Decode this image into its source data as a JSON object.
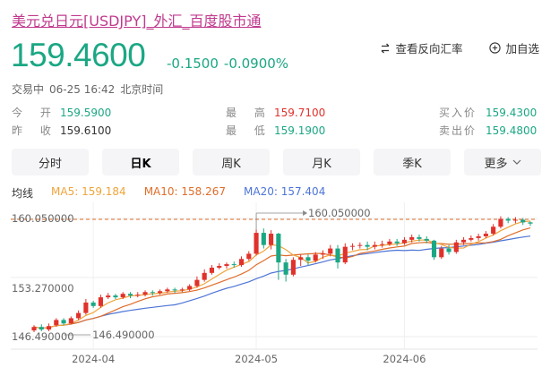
{
  "header": {
    "title": "美元兑日元[USDJPY]_外汇_百度股市通",
    "price": "159.4600",
    "change": "-0.1500",
    "change_pct": "-0.0900%",
    "status": "交易中",
    "datetime": "06-25 16:42",
    "timezone": "北京时间"
  },
  "actions": {
    "compare_label": "查看反向汇率",
    "watchlist_label": "加自选"
  },
  "stats": {
    "open_label": "今 开",
    "open": "159.5900",
    "prev_label": "昨 收",
    "prev": "159.6100",
    "high_label": "最 高",
    "high": "159.7100",
    "low_label": "最 低",
    "low": "159.1900",
    "bid_label": "买入价",
    "bid": "159.4300",
    "ask_label": "卖出价",
    "ask": "159.4800"
  },
  "tabs": [
    {
      "label": "分时"
    },
    {
      "label": "日K"
    },
    {
      "label": "周K"
    },
    {
      "label": "月K"
    },
    {
      "label": "季K"
    },
    {
      "label": "更多"
    }
  ],
  "ma_legend": {
    "title": "均线",
    "ma5": "MA5: 159.184",
    "ma10": "MA10: 158.267",
    "ma20": "MA20: 157.404"
  },
  "colors": {
    "up": "#e0312b",
    "down": "#1ba784",
    "ma5": "#f0a43c",
    "ma10": "#e06d2a",
    "ma20": "#4d74d6",
    "ref_line": "#e06d2a"
  },
  "chart_data": {
    "type": "candlestick",
    "y_tick_labels": [
      "160.050000",
      "153.270000",
      "146.490000"
    ],
    "x_tick_labels": [
      "2024-04",
      "2024-05",
      "2024-06"
    ],
    "max_label": "160.050000",
    "min_label": "146.490000",
    "ylim": [
      146.49,
      160.05
    ],
    "candles": [
      [
        147.2,
        147.6,
        147.0,
        147.8
      ],
      [
        147.6,
        147.3,
        147.1,
        147.9
      ],
      [
        147.3,
        147.7,
        147.1,
        148.0
      ],
      [
        147.8,
        148.4,
        147.6,
        148.6
      ],
      [
        148.4,
        148.0,
        147.8,
        148.6
      ],
      [
        148.0,
        148.6,
        147.9,
        148.8
      ],
      [
        148.6,
        149.2,
        148.4,
        149.5
      ],
      [
        149.2,
        150.4,
        149.0,
        150.8
      ],
      [
        150.4,
        150.0,
        149.8,
        150.6
      ],
      [
        150.0,
        151.0,
        149.8,
        151.3
      ],
      [
        151.0,
        151.2,
        150.8,
        151.5
      ],
      [
        151.2,
        151.0,
        150.8,
        151.4
      ],
      [
        151.0,
        151.4,
        150.8,
        151.6
      ],
      [
        151.4,
        151.2,
        150.9,
        151.6
      ],
      [
        151.2,
        151.3,
        151.0,
        151.6
      ],
      [
        151.3,
        151.6,
        151.1,
        151.8
      ],
      [
        151.6,
        151.5,
        151.2,
        151.8
      ],
      [
        151.5,
        151.7,
        151.3,
        151.9
      ],
      [
        151.7,
        151.9,
        151.5,
        152.1
      ],
      [
        151.9,
        151.8,
        151.5,
        152.1
      ],
      [
        151.8,
        151.9,
        151.6,
        152.1
      ],
      [
        151.9,
        152.3,
        151.7,
        152.5
      ],
      [
        152.3,
        153.0,
        152.1,
        153.4
      ],
      [
        153.0,
        153.8,
        152.8,
        154.2
      ],
      [
        153.8,
        154.4,
        153.6,
        154.7
      ],
      [
        154.4,
        154.6,
        154.2,
        154.9
      ],
      [
        154.6,
        154.8,
        154.3,
        155.0
      ],
      [
        154.8,
        154.7,
        154.4,
        155.1
      ],
      [
        154.7,
        155.4,
        154.5,
        155.7
      ],
      [
        155.4,
        156.0,
        155.2,
        156.3
      ],
      [
        156.0,
        158.4,
        155.8,
        158.8
      ],
      [
        158.4,
        157.0,
        156.6,
        158.9
      ],
      [
        157.0,
        158.3,
        156.5,
        158.7
      ],
      [
        158.3,
        155.0,
        153.0,
        158.4
      ],
      [
        155.0,
        153.6,
        152.8,
        155.4
      ],
      [
        153.6,
        155.3,
        153.4,
        155.6
      ],
      [
        155.3,
        155.6,
        154.6,
        155.9
      ],
      [
        155.6,
        155.2,
        154.7,
        155.9
      ],
      [
        155.2,
        155.9,
        155.0,
        156.2
      ],
      [
        155.9,
        156.0,
        155.4,
        156.4
      ],
      [
        156.0,
        156.6,
        155.7,
        157.0
      ],
      [
        156.6,
        155.0,
        154.3,
        157.0
      ],
      [
        155.0,
        156.8,
        154.8,
        157.2
      ],
      [
        156.8,
        156.9,
        156.4,
        157.2
      ],
      [
        156.9,
        157.0,
        156.6,
        157.3
      ],
      [
        157.0,
        156.8,
        156.4,
        157.4
      ],
      [
        156.8,
        157.0,
        156.5,
        157.4
      ],
      [
        157.0,
        157.1,
        156.7,
        157.5
      ],
      [
        157.1,
        157.4,
        156.9,
        157.7
      ],
      [
        157.4,
        157.2,
        156.9,
        157.7
      ],
      [
        157.2,
        157.6,
        157.0,
        157.9
      ],
      [
        157.6,
        157.9,
        157.3,
        158.2
      ],
      [
        157.9,
        157.7,
        157.4,
        158.2
      ],
      [
        157.7,
        157.5,
        157.2,
        158.0
      ],
      [
        157.5,
        155.6,
        155.3,
        157.6
      ],
      [
        155.6,
        156.6,
        155.4,
        156.9
      ],
      [
        156.6,
        156.2,
        155.9,
        157.0
      ],
      [
        156.2,
        157.3,
        156.0,
        157.6
      ],
      [
        157.3,
        157.6,
        157.0,
        157.9
      ],
      [
        157.6,
        157.8,
        157.4,
        158.1
      ],
      [
        157.8,
        158.0,
        157.5,
        158.3
      ],
      [
        158.0,
        158.3,
        157.8,
        158.6
      ],
      [
        158.3,
        159.1,
        158.1,
        159.4
      ],
      [
        159.1,
        160.0,
        158.9,
        160.3
      ],
      [
        160.0,
        159.8,
        159.5,
        160.2
      ],
      [
        159.8,
        159.9,
        159.5,
        160.2
      ],
      [
        159.9,
        159.6,
        159.3,
        160.1
      ],
      [
        159.6,
        159.46,
        159.19,
        159.71
      ]
    ],
    "candle_fields": [
      "open",
      "close",
      "low",
      "high"
    ]
  }
}
